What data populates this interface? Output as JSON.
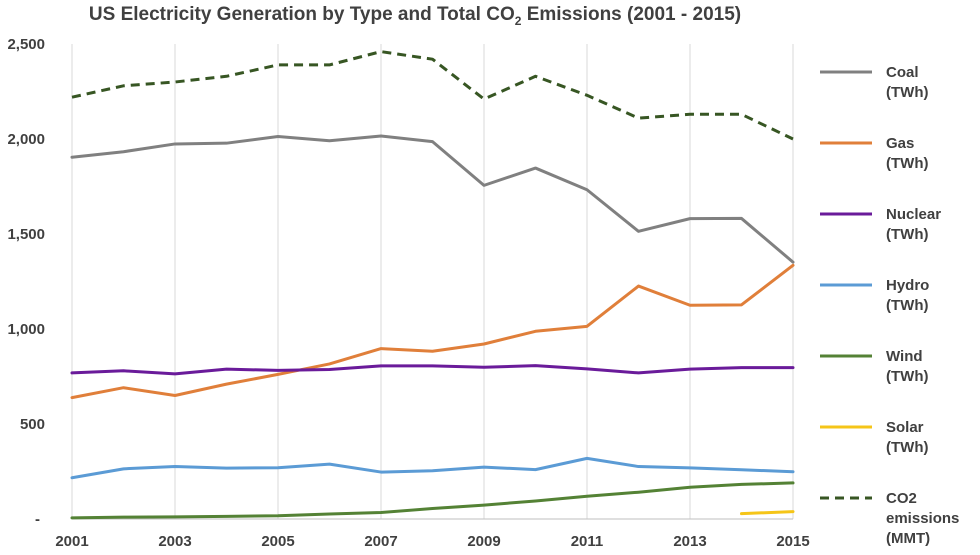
{
  "chart_data": {
    "type": "line",
    "title_main": "US Electricity Generation by Type and Total CO",
    "title_sub": "2",
    "title_end": " Emissions (2001 - 2015)",
    "x": [
      2001,
      2002,
      2003,
      2004,
      2005,
      2006,
      2007,
      2008,
      2009,
      2010,
      2011,
      2012,
      2013,
      2014,
      2015
    ],
    "x_tick_labels": [
      "2001",
      "2003",
      "2005",
      "2007",
      "2009",
      "2011",
      "2013",
      "2015"
    ],
    "y_tick_labels": [
      "-",
      "500",
      "1,000",
      "1,500",
      "2,000",
      "2,500"
    ],
    "ylim": [
      0,
      2500
    ],
    "grid": "vertical",
    "legend_position": "right",
    "series": [
      {
        "name": "Coal",
        "unit": "(TWh)",
        "color": "#808080",
        "dash": false,
        "values": [
          1904,
          1933,
          1974,
          1978,
          2013,
          1991,
          2016,
          1986,
          1756,
          1847,
          1733,
          1514,
          1581,
          1582,
          1352
        ]
      },
      {
        "name": "Gas",
        "unit": "(TWh)",
        "color": "#E07F3A",
        "dash": false,
        "values": [
          639,
          691,
          650,
          710,
          761,
          816,
          897,
          883,
          921,
          988,
          1014,
          1226,
          1125,
          1127,
          1335
        ]
      },
      {
        "name": "Nuclear",
        "unit": "(TWh)",
        "color": "#6A1B9A",
        "dash": false,
        "values": [
          769,
          780,
          764,
          789,
          782,
          787,
          806,
          806,
          799,
          807,
          790,
          769,
          789,
          797,
          797
        ]
      },
      {
        "name": "Hydro",
        "unit": "(TWh)",
        "color": "#5B9BD5",
        "dash": false,
        "values": [
          217,
          264,
          276,
          268,
          270,
          289,
          247,
          254,
          273,
          260,
          319,
          276,
          269,
          259,
          249
        ]
      },
      {
        "name": "Wind",
        "unit": "(TWh)",
        "color": "#548235",
        "dash": false,
        "values": [
          6,
          10,
          11,
          14,
          17,
          26,
          34,
          55,
          73,
          95,
          120,
          141,
          167,
          182,
          190
        ]
      },
      {
        "name": "Solar",
        "unit": "(TWh)",
        "color": "#F5C518",
        "dash": false,
        "values": [
          null,
          null,
          null,
          null,
          null,
          null,
          null,
          null,
          null,
          null,
          null,
          null,
          null,
          28,
          39
        ]
      },
      {
        "name": "CO2",
        "unit": "emissions",
        "unit2": "(MMT)",
        "color": "#375623",
        "dash": true,
        "values": [
          2220,
          2280,
          2300,
          2330,
          2390,
          2390,
          2460,
          2420,
          2210,
          2330,
          2230,
          2110,
          2130,
          2130,
          2000
        ]
      }
    ]
  }
}
